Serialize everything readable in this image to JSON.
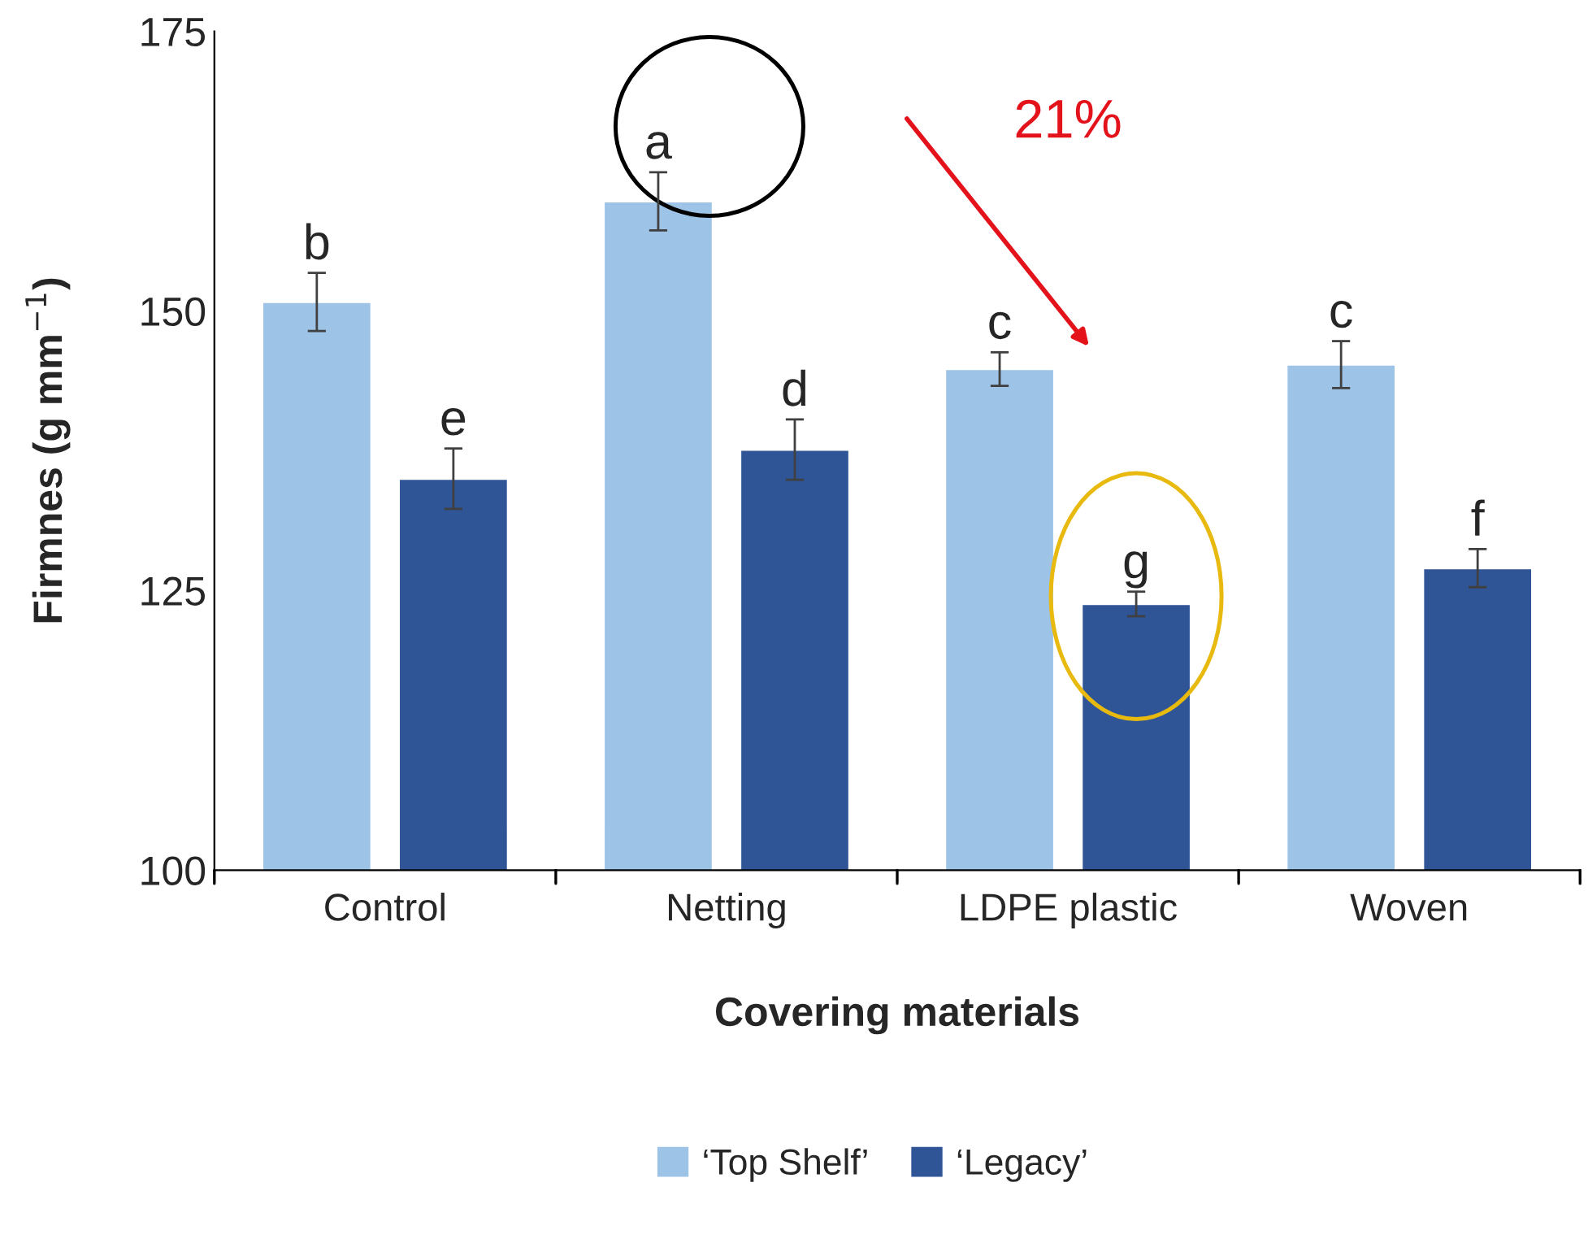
{
  "chart_data": {
    "type": "bar",
    "xlabel": "Covering materials",
    "ylabel": "Firmnes (g mm$^{−1}$)",
    "categories": [
      "Control",
      "Netting",
      "LDPE plastic",
      "Woven"
    ],
    "series": [
      {
        "name": "‘Top Shelf’",
        "color": "#9dc3e6",
        "values": [
          150.8,
          159.8,
          144.8,
          145.2
        ],
        "errors": [
          2.6,
          2.6,
          1.5,
          2.1
        ],
        "value_labels": [
          "b",
          "a",
          "c",
          "c"
        ]
      },
      {
        "name": "‘Legacy’",
        "color": "#2f5597",
        "values": [
          135.0,
          137.6,
          123.8,
          127.0
        ],
        "errors": [
          2.7,
          2.7,
          1.1,
          1.7
        ],
        "value_labels": [
          "e",
          "d",
          "g",
          "f"
        ]
      }
    ],
    "ylim": [
      100,
      175
    ],
    "yticks": [
      100,
      125,
      150,
      175
    ],
    "grid": false,
    "legend": "bottom",
    "annotations": [
      "21%"
    ]
  }
}
